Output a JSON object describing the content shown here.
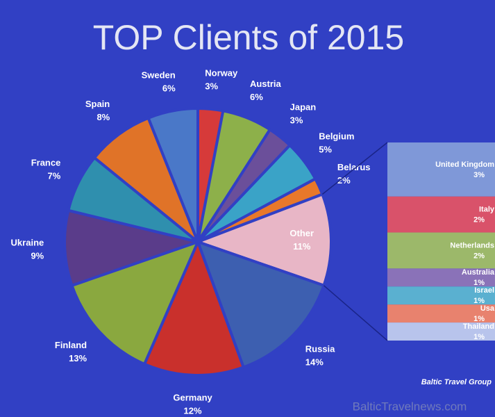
{
  "chart_data": [
    {
      "type": "pie",
      "title": "TOP Clients of 2015",
      "categories": [
        "Norway",
        "Austria",
        "Japan",
        "Belgium",
        "Belarus",
        "Other",
        "Russia",
        "Germany",
        "Finland",
        "Ukraine",
        "France",
        "Spain",
        "Sweden"
      ],
      "values": [
        3,
        6,
        3,
        5,
        2,
        11,
        14,
        12,
        13,
        9,
        7,
        8,
        6
      ],
      "value_labels": [
        "3%",
        "6%",
        "3%",
        "5%",
        "2%",
        "11%",
        "14%",
        "12%",
        "13%",
        "9%",
        "7%",
        "8%",
        "6%"
      ],
      "colors": [
        "#d63a3a",
        "#8db04a",
        "#6b4f9a",
        "#3aa3c7",
        "#e8782a",
        "#e8b6c6",
        "#3d5fb0",
        "#c9302c",
        "#8aa83f",
        "#5a3c8a",
        "#2f8fae",
        "#e07328",
        "#4a78c8"
      ]
    },
    {
      "type": "bar",
      "categories": [
        "United Kingdom",
        "Italy",
        "Netherlands",
        "Australia",
        "Israel",
        "Usa",
        "Thailand"
      ],
      "values": [
        3,
        2,
        2,
        1,
        1,
        1,
        1
      ],
      "value_labels": [
        "3%",
        "2%",
        "2%",
        "1%",
        "1%",
        "1%",
        "1%"
      ],
      "colors": [
        "#7f98d8",
        "#d9526a",
        "#9cb86a",
        "#8a72b8",
        "#5ab0d0",
        "#e8826e",
        "#b8c4ec"
      ]
    }
  ],
  "source": "Baltic Travel Group",
  "watermark": "BalticTravelnews.com"
}
